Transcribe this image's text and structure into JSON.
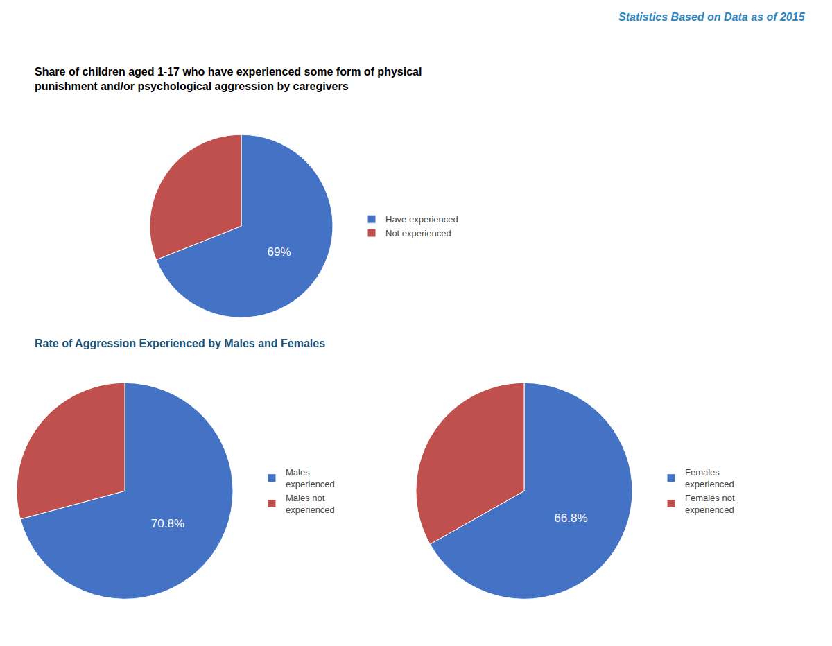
{
  "chart_data": [
    {
      "type": "pie",
      "title": "Share of children aged 1-17 who have experienced some form of physical\npunishment and/or psychological aggression by caregivers",
      "annotations": [
        "Statistics Based on Data as of 2015"
      ],
      "categories": [
        "Have experienced",
        "Not experienced"
      ],
      "values": [
        69,
        31
      ],
      "value_labels": [
        "69%",
        null
      ],
      "colors": [
        "#4472C4",
        "#C0504D"
      ],
      "legend": "right"
    },
    {
      "type": "pie",
      "title": "Rate of Aggression Experienced by Males and Females",
      "categories": [
        "Males\nexperienced",
        "Males not\nexperienced"
      ],
      "values": [
        70.8,
        29.2
      ],
      "value_labels": [
        "70.8%",
        null
      ],
      "colors": [
        "#4472C4",
        "#C0504D"
      ],
      "legend": "right"
    },
    {
      "type": "pie",
      "categories": [
        "Females\nexperienced",
        "Females not\nexperienced"
      ],
      "values": [
        66.8,
        33.2
      ],
      "value_labels": [
        "66.8%",
        null
      ],
      "colors": [
        "#4472C4",
        "#C0504D"
      ],
      "legend": "right"
    }
  ]
}
